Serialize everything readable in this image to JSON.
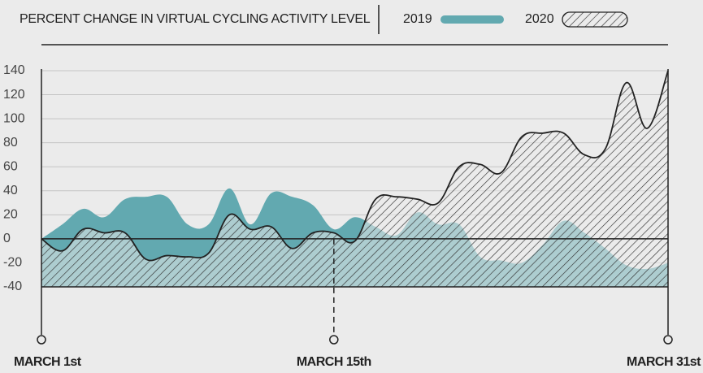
{
  "chart_data": {
    "type": "area",
    "title": "PERCENT CHANGE IN VIRTUAL CYCLING ACTIVITY LEVEL",
    "x": [
      1,
      2,
      3,
      4,
      5,
      6,
      7,
      8,
      9,
      10,
      11,
      12,
      13,
      14,
      15,
      16,
      17,
      18,
      19,
      20,
      21,
      22,
      23,
      24,
      25,
      26,
      27,
      28,
      29,
      30,
      31
    ],
    "series": [
      {
        "name": "2019",
        "color": "#62a9b0",
        "fill": "solid",
        "values": [
          0,
          12,
          25,
          18,
          33,
          35,
          35,
          12,
          12,
          42,
          12,
          38,
          35,
          28,
          8,
          18,
          10,
          3,
          22,
          12,
          12,
          -15,
          -18,
          -20,
          -5,
          15,
          5,
          -8,
          -22,
          -25,
          -20
        ]
      },
      {
        "name": "2020",
        "color": "#222222",
        "fill": "hatch",
        "values": [
          0,
          -10,
          8,
          5,
          5,
          -17,
          -14,
          -15,
          -12,
          20,
          8,
          10,
          -8,
          5,
          5,
          -2,
          33,
          35,
          33,
          30,
          60,
          62,
          55,
          85,
          88,
          88,
          70,
          75,
          130,
          92,
          140
        ]
      }
    ],
    "xlim": [
      1,
      31
    ],
    "xticks": [
      {
        "value": 1,
        "label": "MARCH 1st"
      },
      {
        "value": 15,
        "label": "MARCH 15th"
      },
      {
        "value": 31,
        "label": "MARCH 31st"
      }
    ],
    "ylim": [
      -40,
      140
    ],
    "yticks": [
      140,
      120,
      100,
      80,
      60,
      40,
      20,
      0,
      -20,
      -40
    ],
    "grid": true
  }
}
